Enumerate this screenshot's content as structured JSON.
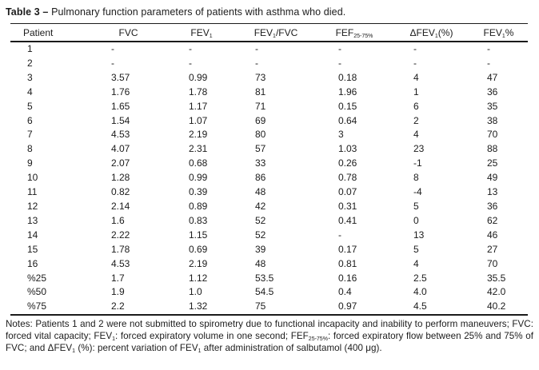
{
  "title": {
    "label": "Table 3 –",
    "text": "Pulmonary function parameters of patients with asthma who died."
  },
  "table": {
    "headers": [
      {
        "base": "Patient",
        "sub": "",
        "suffix": ""
      },
      {
        "base": "FVC",
        "sub": "",
        "suffix": ""
      },
      {
        "base": "FEV",
        "sub": "1",
        "suffix": ""
      },
      {
        "base": "FEV",
        "sub": "1",
        "suffix": "/FVC"
      },
      {
        "base": "FEF",
        "sub": "25-75%",
        "suffix": ""
      },
      {
        "base": "ΔFEV",
        "sub": "1",
        "suffix": "(%)"
      },
      {
        "base": "FEV",
        "sub": "1",
        "suffix": "%"
      }
    ],
    "rows": [
      [
        "1",
        "-",
        "-",
        "-",
        "-",
        "-",
        "-"
      ],
      [
        "2",
        "-",
        "-",
        "-",
        "-",
        "-",
        "-"
      ],
      [
        "3",
        "3.57",
        "0.99",
        "73",
        "0.18",
        "4",
        "47"
      ],
      [
        "4",
        "1.76",
        "1.78",
        "81",
        "1.96",
        "1",
        "36"
      ],
      [
        "5",
        "1.65",
        "1.17",
        "71",
        "0.15",
        "6",
        "35"
      ],
      [
        "6",
        "1.54",
        "1.07",
        "69",
        "0.64",
        "2",
        "38"
      ],
      [
        "7",
        "4.53",
        "2.19",
        "80",
        "3",
        "4",
        "70"
      ],
      [
        "8",
        "4.07",
        "2.31",
        "57",
        "1.03",
        "23",
        "88"
      ],
      [
        "9",
        "2.07",
        "0.68",
        "33",
        "0.26",
        "-1",
        "25"
      ],
      [
        "10",
        "1.28",
        "0.99",
        "86",
        "0.78",
        "8",
        "49"
      ],
      [
        "11",
        "0.82",
        "0.39",
        "48",
        "0.07",
        "-4",
        "13"
      ],
      [
        "12",
        "2.14",
        "0.89",
        "42",
        "0.31",
        "5",
        "36"
      ],
      [
        "13",
        "1.6",
        "0.83",
        "52",
        "0.41",
        "0",
        "62"
      ],
      [
        "14",
        "2.22",
        "1.15",
        "52",
        "-",
        "13",
        "46"
      ],
      [
        "15",
        "1.78",
        "0.69",
        "39",
        "0.17",
        "5",
        "27"
      ],
      [
        "16",
        "4.53",
        "2.19",
        "48",
        "0.81",
        "4",
        "70"
      ],
      [
        "%25",
        "1.7",
        "1.12",
        "53.5",
        "0.16",
        "2.5",
        "35.5"
      ],
      [
        "%50",
        "1.9",
        "1.0",
        "54.5",
        "0.4",
        "4.0",
        "42.0"
      ],
      [
        "%75",
        "2.2",
        "1.32",
        "75",
        "0.97",
        "4.5",
        "40.2"
      ]
    ]
  },
  "notes": {
    "segments": [
      {
        "t": "Notes: Patients 1 and 2 were not submitted to spirometry due to functional incapacity and inability to perform maneuvers; FVC: forced vital capacity; FEV",
        "sub": "1"
      },
      {
        "t": ": forced expiratory volume in one second; FEF",
        "sub": "25-75%"
      },
      {
        "t": ": forced expiratory flow between 25% and 75% of FVC; and ΔFEV",
        "sub": "1"
      },
      {
        "t": " (%): percent variation of FEV",
        "sub": "1"
      },
      {
        "t": " after administration of salbutamol (400 μg).",
        "sub": ""
      }
    ]
  },
  "colors": {
    "text": "#1b1b1b",
    "background": "#ffffff",
    "rule": "#1b1b1b"
  }
}
